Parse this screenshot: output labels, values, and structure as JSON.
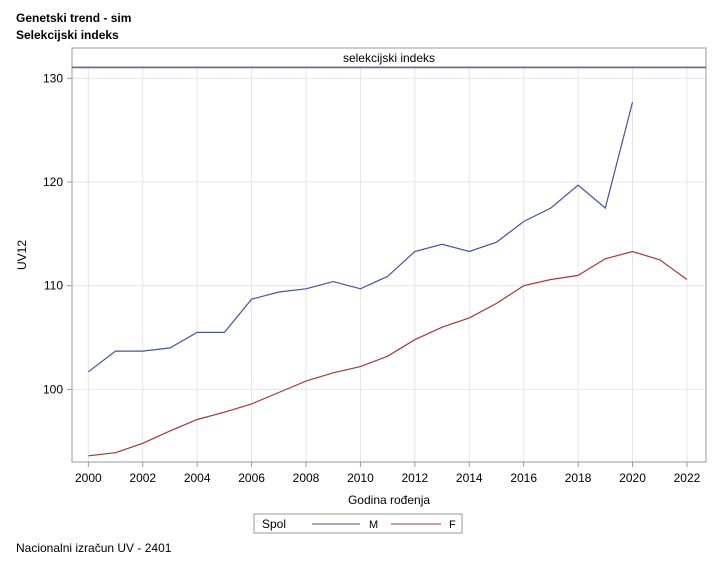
{
  "titles": [
    "Genetski trend - sim",
    "Selekcijski indeks"
  ],
  "footnote": "Nacionalni izračun UV - 2401",
  "chart_data": {
    "type": "line",
    "panel_label": "selekcijski indeks",
    "xlabel": "Godina rođenja",
    "ylabel": "UV12",
    "xlim": [
      1999.4,
      2022.7
    ],
    "ylim": [
      93,
      131
    ],
    "x_ticks": [
      2000,
      2002,
      2004,
      2006,
      2008,
      2010,
      2012,
      2014,
      2016,
      2018,
      2020,
      2022
    ],
    "y_ticks": [
      100,
      110,
      120,
      130
    ],
    "grid": true,
    "legend": {
      "title": "Spol",
      "placement": "bottom-center"
    },
    "series": [
      {
        "name": "M",
        "color": "#445694",
        "x": [
          2000,
          2001,
          2002,
          2003,
          2004,
          2005,
          2006,
          2007,
          2008,
          2009,
          2010,
          2011,
          2012,
          2013,
          2014,
          2015,
          2016,
          2017,
          2018,
          2019,
          2020
        ],
        "values": [
          101.7,
          103.7,
          103.7,
          104.0,
          105.5,
          105.5,
          108.7,
          109.4,
          109.7,
          110.4,
          109.7,
          110.9,
          113.3,
          114.0,
          113.3,
          114.2,
          116.2,
          117.5,
          119.7,
          117.5,
          127.7
        ]
      },
      {
        "name": "F",
        "color": "#a23a36",
        "x": [
          2000,
          2001,
          2002,
          2003,
          2004,
          2005,
          2006,
          2007,
          2008,
          2009,
          2010,
          2011,
          2012,
          2013,
          2014,
          2015,
          2016,
          2017,
          2018,
          2019,
          2020,
          2021,
          2022
        ],
        "values": [
          93.6,
          93.9,
          94.8,
          96.0,
          97.1,
          97.8,
          98.6,
          99.7,
          100.8,
          101.6,
          102.2,
          103.2,
          104.8,
          106.0,
          106.9,
          108.3,
          110.0,
          110.6,
          111.0,
          112.6,
          113.3,
          112.5,
          110.6
        ]
      }
    ]
  }
}
